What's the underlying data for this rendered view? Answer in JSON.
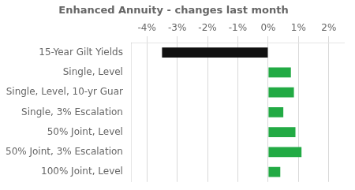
{
  "chart_data": {
    "type": "bar",
    "orientation": "horizontal",
    "title": "Enhanced Annuity - changes last month",
    "categories": [
      "100% Joint, Level",
      "50% Joint, 3% Escalation",
      "50% Joint, Level",
      "Single, 3% Escalation",
      "Single, Level, 10-yr Guar",
      "Single, Level",
      "15-Year Gilt Yields"
    ],
    "values": [
      0.4,
      1.1,
      0.9,
      0.5,
      0.85,
      0.75,
      -3.5
    ],
    "colors": [
      "#22aa44",
      "#22aa44",
      "#22aa44",
      "#22aa44",
      "#22aa44",
      "#22aa44",
      "#111111"
    ],
    "xlim": [
      -4.5,
      2.5
    ],
    "xticks": [
      {
        "value": -4,
        "label": "-4%"
      },
      {
        "value": -3,
        "label": "-3%"
      },
      {
        "value": -2,
        "label": "-2%"
      },
      {
        "value": -1,
        "label": "-1%"
      },
      {
        "value": 0,
        "label": "0%"
      },
      {
        "value": 1,
        "label": "1%"
      },
      {
        "value": 2,
        "label": "2%"
      }
    ],
    "grid": true
  }
}
